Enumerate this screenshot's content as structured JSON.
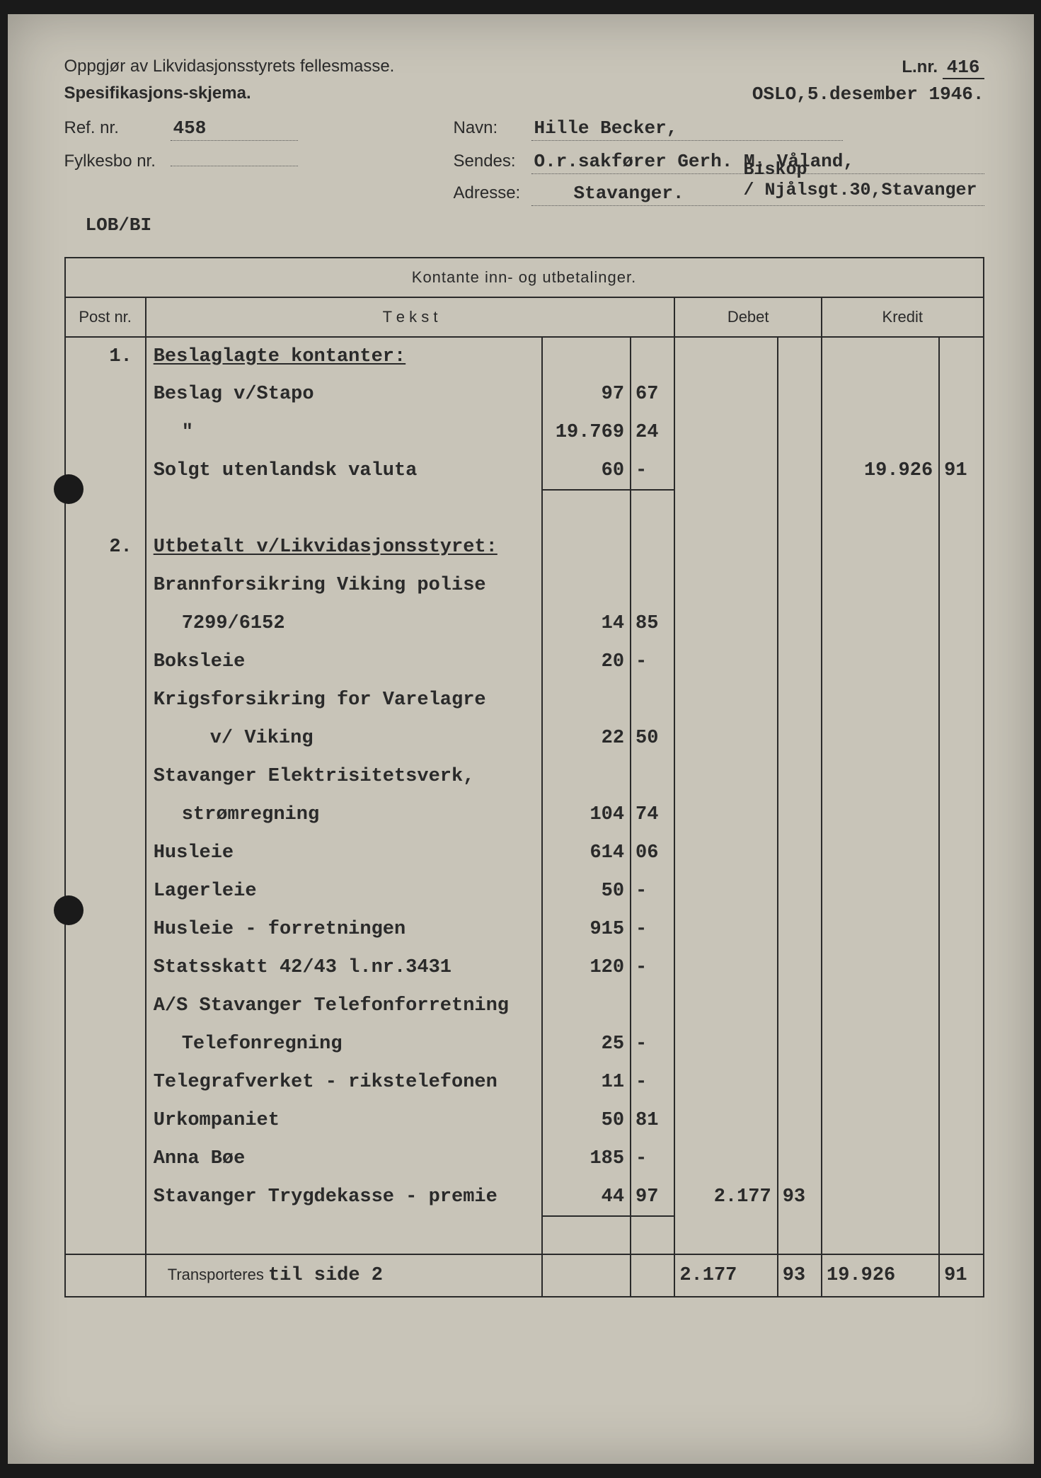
{
  "header": {
    "title_left": "Oppgjør av Likvidasjonsstyrets fellesmasse.",
    "lnr_label": "L.nr.",
    "lnr_value": "416",
    "subtitle_left": "Spesifikasjons-skjema.",
    "date": "OSLO,5.desember 1946.",
    "ref_label": "Ref. nr.",
    "ref_value": "458",
    "navn_label": "Navn:",
    "navn_value": "Hille Becker,",
    "fylkesbo_label": "Fylkesbo nr.",
    "fylkesbo_value": "",
    "sendes_label": "Sendes:",
    "sendes_value": "O.r.sakfører Gerh. M. Våland,",
    "adresse_label": "Adresse:",
    "adresse_value": "Stavanger.",
    "addr_right_line1": "Biskop",
    "addr_right_line2": "/ Njålsgt.30,Stavanger",
    "clerk": "LOB/BI"
  },
  "table": {
    "title": "Kontante inn- og utbetalinger.",
    "col_post": "Post nr.",
    "col_tekst": "T e k s t",
    "col_debet": "Debet",
    "col_kredit": "Kredit"
  },
  "rows": [
    {
      "post": "1.",
      "text": "Beslaglagte kontanter:",
      "s1": "",
      "s2": "",
      "d1": "",
      "d2": "",
      "k1": "",
      "k2": "",
      "cls": "section-head"
    },
    {
      "post": "",
      "text": "Beslag v/Stapo",
      "s1": "97",
      "s2": "67",
      "d1": "",
      "d2": "",
      "k1": "",
      "k2": ""
    },
    {
      "post": "",
      "text": "\"",
      "s1": "19.769",
      "s2": "24",
      "d1": "",
      "d2": "",
      "k1": "",
      "k2": "",
      "indent": "indent1"
    },
    {
      "post": "",
      "text": "Solgt utenlandsk valuta",
      "s1": "60",
      "s2": "-",
      "d1": "",
      "d2": "",
      "k1": "19.926",
      "k2": "91",
      "rule": true
    },
    {
      "post": "",
      "text": "",
      "s1": "",
      "s2": "",
      "d1": "",
      "d2": "",
      "k1": "",
      "k2": "",
      "spacer": true
    },
    {
      "post": "2.",
      "text": "Utbetalt v/Likvidasjonsstyret:",
      "s1": "",
      "s2": "",
      "d1": "",
      "d2": "",
      "k1": "",
      "k2": "",
      "cls": "section-head"
    },
    {
      "post": "",
      "text": "Brannforsikring Viking polise",
      "s1": "",
      "s2": "",
      "d1": "",
      "d2": "",
      "k1": "",
      "k2": ""
    },
    {
      "post": "",
      "text": "7299/6152",
      "s1": "14",
      "s2": "85",
      "d1": "",
      "d2": "",
      "k1": "",
      "k2": "",
      "indent": "indent1"
    },
    {
      "post": "",
      "text": "Boksleie",
      "s1": "20",
      "s2": "-",
      "d1": "",
      "d2": "",
      "k1": "",
      "k2": ""
    },
    {
      "post": "",
      "text": "Krigsforsikring for Varelagre",
      "s1": "",
      "s2": "",
      "d1": "",
      "d2": "",
      "k1": "",
      "k2": ""
    },
    {
      "post": "",
      "text": "v/ Viking",
      "s1": "22",
      "s2": "50",
      "d1": "",
      "d2": "",
      "k1": "",
      "k2": "",
      "indent": "indent2"
    },
    {
      "post": "",
      "text": "Stavanger Elektrisitetsverk,",
      "s1": "",
      "s2": "",
      "d1": "",
      "d2": "",
      "k1": "",
      "k2": ""
    },
    {
      "post": "",
      "text": "strømregning",
      "s1": "104",
      "s2": "74",
      "d1": "",
      "d2": "",
      "k1": "",
      "k2": "",
      "indent": "indent1"
    },
    {
      "post": "",
      "text": "Husleie",
      "s1": "614",
      "s2": "06",
      "d1": "",
      "d2": "",
      "k1": "",
      "k2": ""
    },
    {
      "post": "",
      "text": "Lagerleie",
      "s1": "50",
      "s2": "-",
      "d1": "",
      "d2": "",
      "k1": "",
      "k2": ""
    },
    {
      "post": "",
      "text": "Husleie - forretningen",
      "s1": "915",
      "s2": "-",
      "d1": "",
      "d2": "",
      "k1": "",
      "k2": ""
    },
    {
      "post": "",
      "text": "Statsskatt 42/43 l.nr.3431",
      "s1": "120",
      "s2": "-",
      "d1": "",
      "d2": "",
      "k1": "",
      "k2": ""
    },
    {
      "post": "",
      "text": "A/S Stavanger Telefonforretning",
      "s1": "",
      "s2": "",
      "d1": "",
      "d2": "",
      "k1": "",
      "k2": ""
    },
    {
      "post": "",
      "text": "Telefonregning",
      "s1": "25",
      "s2": "-",
      "d1": "",
      "d2": "",
      "k1": "",
      "k2": "",
      "indent": "indent1"
    },
    {
      "post": "",
      "text": "Telegrafverket - rikstelefonen",
      "s1": "11",
      "s2": "-",
      "d1": "",
      "d2": "",
      "k1": "",
      "k2": ""
    },
    {
      "post": "",
      "text": "Urkompaniet",
      "s1": "50",
      "s2": "81",
      "d1": "",
      "d2": "",
      "k1": "",
      "k2": ""
    },
    {
      "post": "",
      "text": "Anna Bøe",
      "s1": "185",
      "s2": "-",
      "d1": "",
      "d2": "",
      "k1": "",
      "k2": ""
    },
    {
      "post": "",
      "text": "Stavanger Trygdekasse - premie",
      "s1": "44",
      "s2": "97",
      "d1": "2.177",
      "d2": "93",
      "k1": "",
      "k2": "",
      "rule": true
    },
    {
      "post": "",
      "text": "",
      "s1": "",
      "s2": "",
      "d1": "",
      "d2": "",
      "k1": "",
      "k2": "",
      "spacer": true
    }
  ],
  "footer": {
    "label": "Transporteres",
    "typed": "til side 2",
    "d1": "2.177",
    "d2": "93",
    "k1": "19.926",
    "k2": "91"
  }
}
